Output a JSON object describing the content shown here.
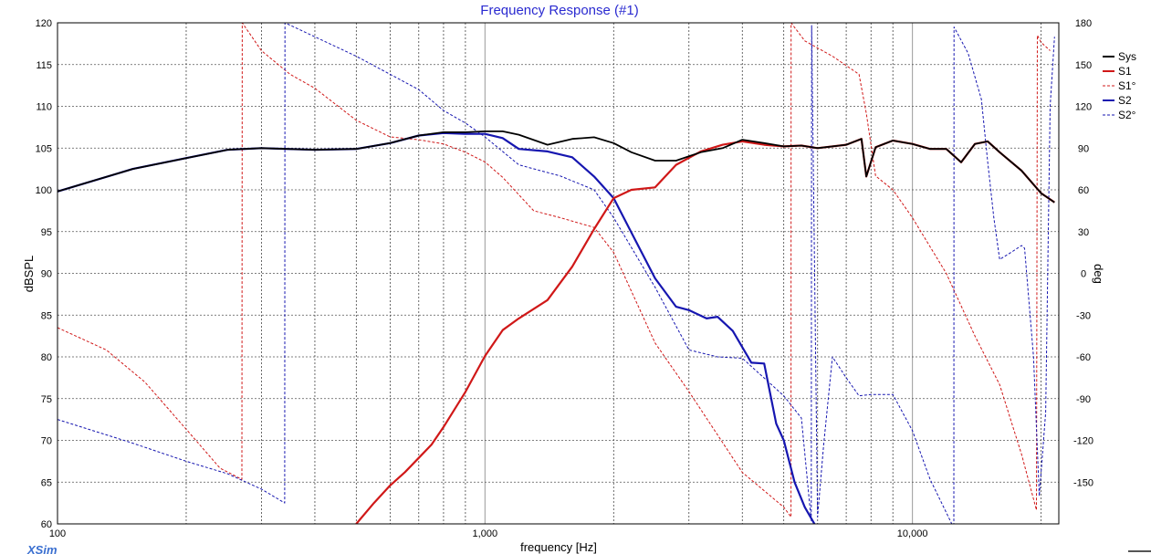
{
  "chart_data": {
    "type": "line",
    "title": "Frequency Response (#1)",
    "xlabel": "frequency [Hz]",
    "ylabel": "dBSPL",
    "y2label": "deg",
    "xscale": "log",
    "xlim": [
      100,
      22000
    ],
    "ylim": [
      60,
      120
    ],
    "y2lim": [
      -180,
      180
    ],
    "x_tick_labels": [
      {
        "value": 100,
        "label": "100"
      },
      {
        "value": 1000,
        "label": "1,000"
      },
      {
        "value": 10000,
        "label": "10,000"
      }
    ],
    "y_ticks": [
      60,
      65,
      70,
      75,
      80,
      85,
      90,
      95,
      100,
      105,
      110,
      115,
      120
    ],
    "y2_ticks": [
      -150,
      -120,
      -90,
      -60,
      -30,
      0,
      30,
      60,
      90,
      120,
      150,
      180
    ],
    "grid": true,
    "legend_position": "top-right",
    "brand_label": "XSim",
    "series": [
      {
        "name": "Sys",
        "axis": "left",
        "color": "#000000",
        "style": "solid",
        "x": [
          100,
          150,
          200,
          250,
          300,
          400,
          500,
          600,
          700,
          800,
          900,
          1000,
          1100,
          1200,
          1400,
          1600,
          1800,
          2000,
          2200,
          2500,
          2800,
          3200,
          3600,
          4000,
          4500,
          5000,
          5500,
          6000,
          7000,
          7600,
          7800,
          8200,
          9000,
          10000,
          11000,
          12000,
          13000,
          14000,
          15000,
          16000,
          18000,
          20000,
          21500
        ],
        "y": [
          99.8,
          102.5,
          103.8,
          104.8,
          105.0,
          104.8,
          104.9,
          105.6,
          106.5,
          106.9,
          106.9,
          107.0,
          107.0,
          106.6,
          105.4,
          106.1,
          106.3,
          105.6,
          104.5,
          103.5,
          103.5,
          104.5,
          105.0,
          106.0,
          105.6,
          105.2,
          105.3,
          105.0,
          105.4,
          106.1,
          101.6,
          105.1,
          105.9,
          105.5,
          104.9,
          104.9,
          103.3,
          105.5,
          105.8,
          104.5,
          102.3,
          99.6,
          98.5
        ]
      },
      {
        "name": "S1",
        "axis": "left",
        "color": "#d01818",
        "style": "solid",
        "x": [
          500,
          550,
          600,
          650,
          700,
          750,
          800,
          900,
          1000,
          1100,
          1200,
          1400,
          1600,
          1800,
          2000,
          2200,
          2500,
          2800,
          3200,
          3600,
          4000,
          4500,
          5000,
          5500,
          6000,
          7000,
          7600,
          7800,
          8200,
          9000,
          10000,
          11000,
          12000,
          13000,
          14000,
          15000,
          16000,
          18000,
          20000,
          21500
        ],
        "y": [
          60.0,
          62.5,
          64.6,
          66.2,
          67.9,
          69.5,
          71.6,
          75.8,
          80.1,
          83.2,
          84.6,
          86.8,
          90.8,
          95.3,
          99.0,
          100.0,
          100.3,
          103.0,
          104.6,
          105.4,
          105.8,
          105.4,
          105.2,
          105.3,
          105.0,
          105.4,
          106.1,
          101.6,
          105.1,
          105.9,
          105.5,
          104.9,
          104.9,
          103.3,
          105.5,
          105.8,
          104.5,
          102.3,
          99.6,
          98.5
        ]
      },
      {
        "name": "S1°",
        "axis": "right",
        "color": "#d01818",
        "style": "dashed",
        "x": [
          100,
          130,
          160,
          200,
          240,
          270,
          270.5,
          300,
          350,
          400,
          500,
          600,
          700,
          800,
          900,
          1000,
          1100,
          1300,
          1500,
          1800,
          2000,
          2500,
          3000,
          4000,
          5000,
          5200,
          5200.5,
          5600,
          6500,
          7500,
          7800,
          8200,
          9000,
          10000,
          12000,
          14000,
          16000,
          18000,
          19500,
          19600,
          20000,
          21000
        ],
        "y": [
          -39,
          -55,
          -78,
          -112,
          -140,
          -148,
          180,
          160,
          143,
          133,
          110,
          98,
          96,
          93,
          87,
          80,
          69,
          45,
          40,
          33,
          15,
          -50,
          -85,
          -143,
          -168,
          -175,
          180,
          167,
          156,
          143,
          115,
          70,
          60,
          40,
          0,
          -45,
          -80,
          -130,
          -170,
          171,
          166,
          160
        ]
      },
      {
        "name": "S2",
        "axis": "left",
        "color": "#1616b0",
        "style": "solid",
        "x": [
          100,
          150,
          200,
          250,
          300,
          400,
          500,
          600,
          700,
          800,
          900,
          1000,
          1100,
          1200,
          1400,
          1600,
          1800,
          2000,
          2200,
          2500,
          2800,
          3000,
          3300,
          3500,
          3800,
          4200,
          4500,
          4800,
          5000,
          5300,
          5600,
          5900
        ],
        "y": [
          99.8,
          102.5,
          103.8,
          104.8,
          105.0,
          104.8,
          104.9,
          105.6,
          106.5,
          106.8,
          106.7,
          106.7,
          106.2,
          104.9,
          104.6,
          103.9,
          101.6,
          99.0,
          94.9,
          89.4,
          86.0,
          85.6,
          84.6,
          84.8,
          83.1,
          79.3,
          79.2,
          72.0,
          70.0,
          65.0,
          62.0,
          60.0
        ]
      },
      {
        "name": "S2°",
        "axis": "right",
        "color": "#1616b0",
        "style": "dashed",
        "x": [
          100,
          150,
          200,
          250,
          300,
          340,
          340.5,
          400,
          500,
          600,
          700,
          800,
          900,
          1000,
          1200,
          1500,
          1800,
          2000,
          2500,
          3000,
          3500,
          4000,
          5000,
          5500,
          5800,
          5810,
          6000,
          6200,
          6500,
          7000,
          7500,
          8000,
          9000,
          10000,
          11000,
          12500,
          12510,
          13500,
          14500,
          15000,
          15500,
          16000,
          17000,
          18000,
          18300,
          19200,
          19800,
          20500,
          21000,
          21500
        ],
        "y": [
          -105,
          -122,
          -135,
          -144,
          -155,
          -165,
          180,
          170,
          156,
          143,
          132,
          117,
          108,
          98,
          78,
          70,
          60,
          40,
          -10,
          -55,
          -60,
          -61,
          -88,
          -104,
          -178,
          178,
          -175,
          -123,
          -60,
          -75,
          -88,
          -87,
          -87,
          -113,
          -148,
          -183,
          177,
          158,
          125,
          80,
          40,
          10,
          15,
          20,
          18,
          -60,
          -160,
          -100,
          120,
          170
        ]
      }
    ]
  }
}
